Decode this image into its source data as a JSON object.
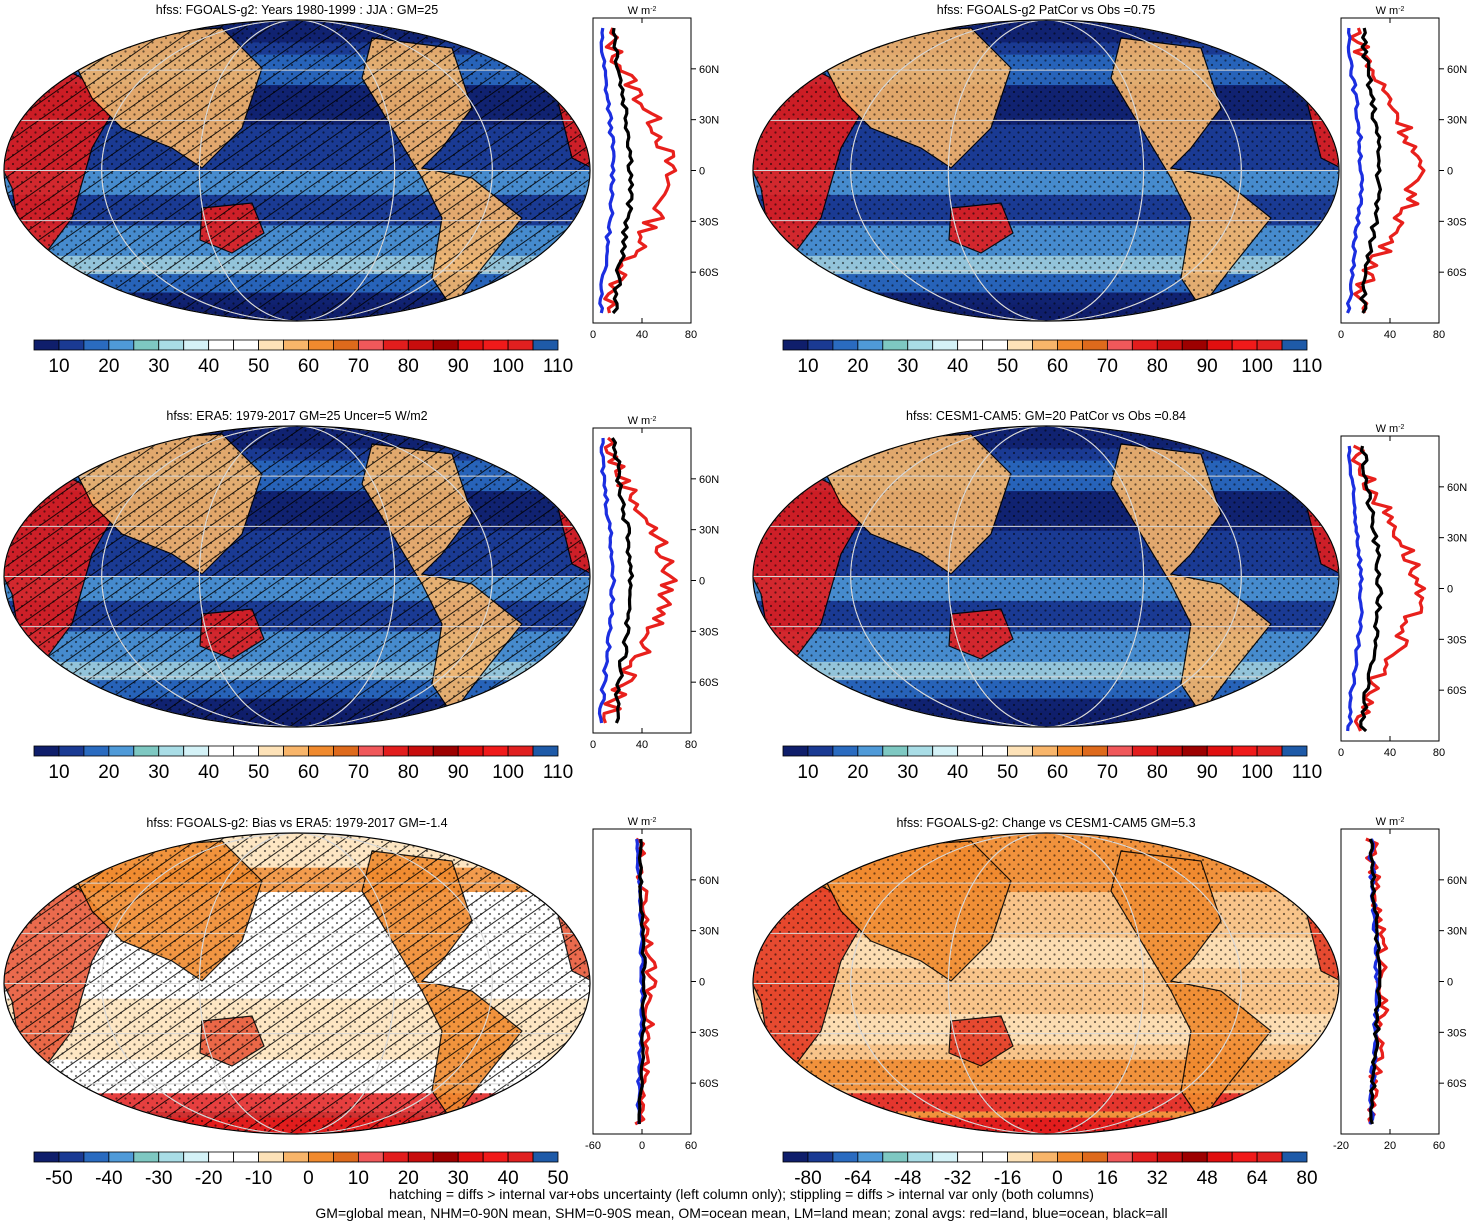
{
  "panels": [
    {
      "id": "p1",
      "title": "hfss: FGOALS-g2: Years 1980-1999 : JJA : GM=25",
      "colorbar": "abs",
      "pattern": "hatch",
      "zonal": "abs1",
      "zonal_ticks": [
        "0",
        "40",
        "80"
      ]
    },
    {
      "id": "p2",
      "title": "hfss: FGOALS-g2 PatCor vs Obs =0.75",
      "colorbar": "abs",
      "pattern": "stipple",
      "zonal": "abs1",
      "zonal_ticks": [
        "0",
        "40",
        "80"
      ]
    },
    {
      "id": "p3",
      "title": "hfss: ERA5: 1979-2017 GM=25 Uncer=5 W/m2",
      "colorbar": "abs",
      "pattern": "hatch",
      "zonal": "abs2",
      "zonal_ticks": [
        "0",
        "40",
        "80"
      ]
    },
    {
      "id": "p4",
      "title": "hfss: CESM1-CAM5: GM=20 PatCor vs Obs =0.84",
      "colorbar": "abs",
      "pattern": "stipple",
      "zonal": "abs2",
      "zonal_ticks": [
        "0",
        "40",
        "80"
      ]
    },
    {
      "id": "p5",
      "title": "hfss: FGOALS-g2: Bias vs ERA5: 1979-2017 GM=-1.4",
      "colorbar": "bias",
      "pattern": "hatch",
      "zonal": "bias",
      "zonal_ticks": [
        "-60",
        "0",
        "60"
      ]
    },
    {
      "id": "p6",
      "title": "hfss: FGOALS-g2: Change vs CESM1-CAM5 GM=5.3",
      "colorbar": "change",
      "pattern": "stipple",
      "zonal": "change",
      "zonal_ticks": [
        "-20",
        "20",
        "60"
      ]
    }
  ],
  "zonal_unit": "W m",
  "zonal_unit_exp": "-2",
  "lat_labels": [
    "60N",
    "30N",
    "0",
    "30S",
    "60S"
  ],
  "colorbars": {
    "abs": {
      "labels": [
        "10",
        "20",
        "30",
        "40",
        "50",
        "60",
        "70",
        "80",
        "90",
        "100",
        "110"
      ]
    },
    "bias": {
      "labels": [
        "-50",
        "-40",
        "-30",
        "-20",
        "-10",
        "0",
        "10",
        "20",
        "30",
        "40",
        "50"
      ]
    },
    "change": {
      "labels": [
        "-80",
        "-64",
        "-48",
        "-32",
        "-16",
        "0",
        "16",
        "32",
        "48",
        "64",
        "80"
      ]
    }
  },
  "footer": {
    "line1": "hatching = diffs > internal var+obs uncertainty (left column only); stippling = diffs > internal var only (both columns)",
    "line2": "GM=global mean, NHM=0-90N mean, SHM=0-90S mean, OM=ocean mean, LM=land mean; zonal avgs: red=land, blue=ocean, black=all"
  },
  "zonal_legend": {
    "land": "#e8201c",
    "ocean": "#1b2ee0",
    "all": "#000000"
  }
}
